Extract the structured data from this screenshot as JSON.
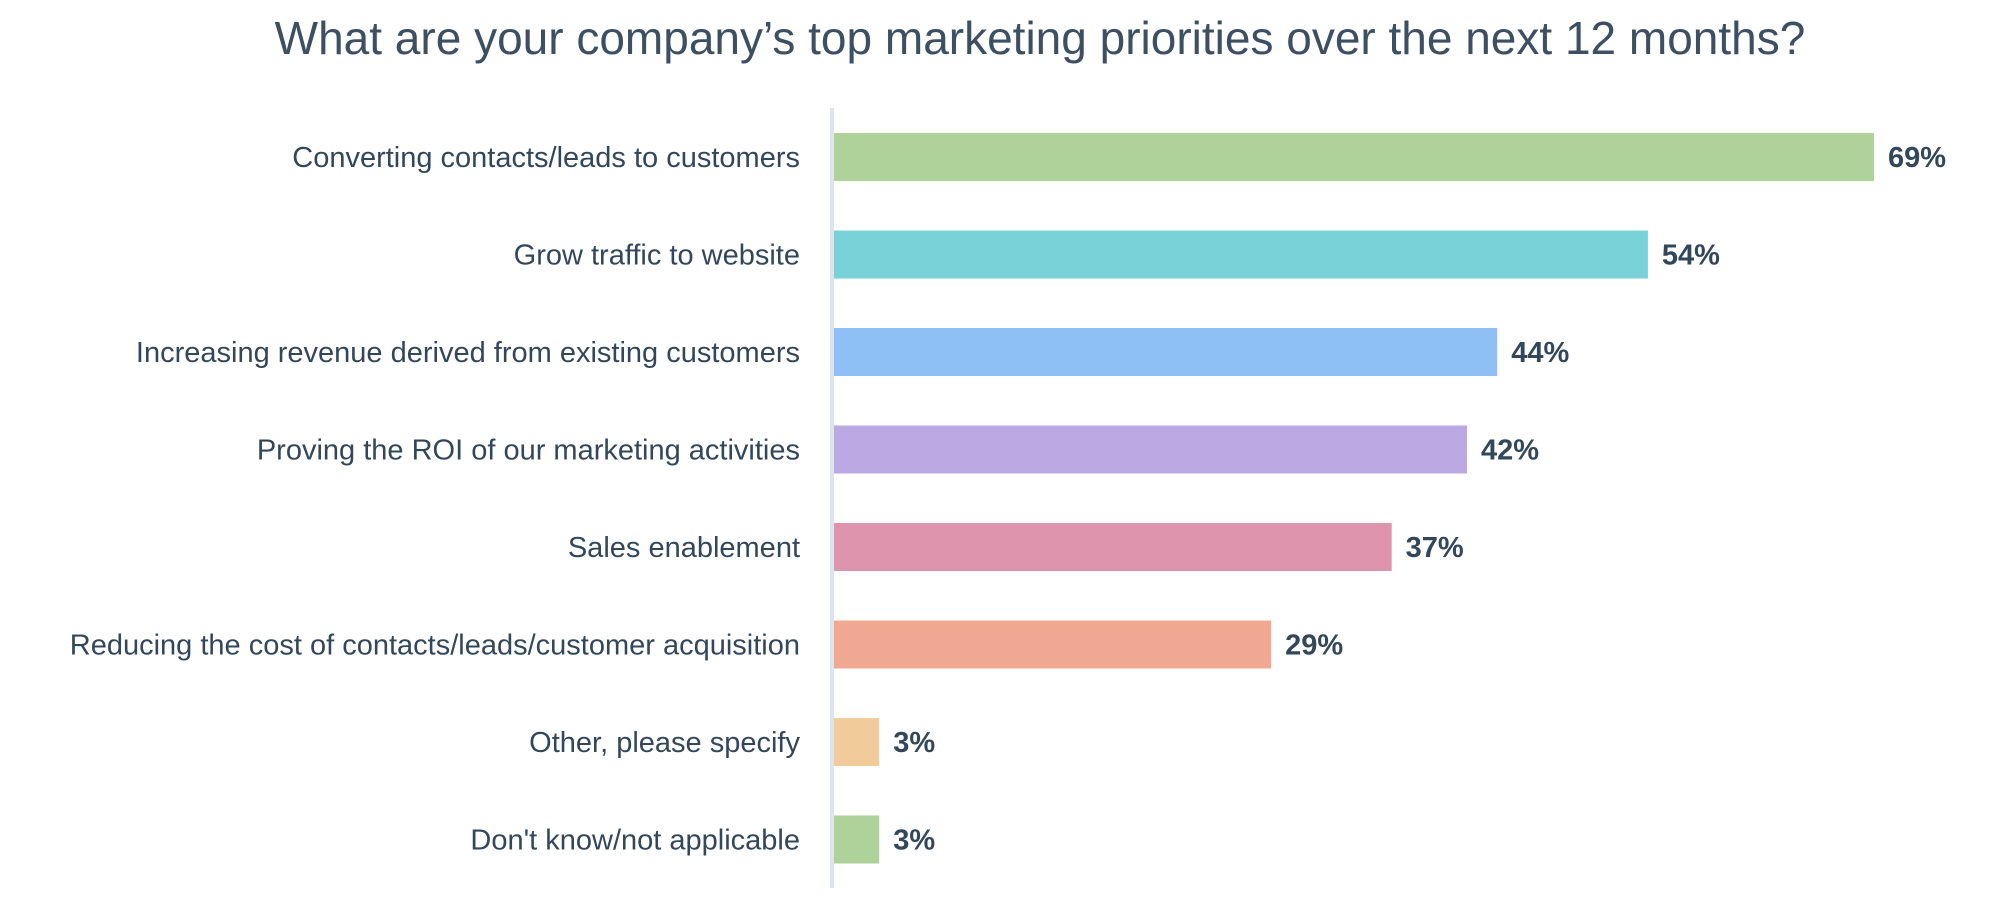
{
  "chart_data": {
    "type": "bar",
    "orientation": "horizontal",
    "title": "What are your company’s top marketing priorities over the next 12 months?",
    "xlabel": "",
    "ylabel": "",
    "xlim": [
      0,
      69
    ],
    "grid": false,
    "legend": "none",
    "value_suffix": "%",
    "categories": [
      "Converting contacts/leads to customers",
      "Grow traffic to website",
      "Increasing revenue derived from existing customers",
      "Proving the ROI of our marketing activities",
      "Sales enablement",
      "Reducing the cost of contacts/leads/customer acquisition",
      "Other, please specify",
      "Don't know/not applicable"
    ],
    "values": [
      69,
      54,
      44,
      42,
      37,
      29,
      3,
      3
    ],
    "colors": [
      "#aed29a",
      "#78d2d8",
      "#8fc0f5",
      "#baa9e2",
      "#df94ad",
      "#f1a893",
      "#f1cb99",
      "#aed29a"
    ],
    "axis_color": "#dfe3eb",
    "text_color": "#33475b"
  }
}
